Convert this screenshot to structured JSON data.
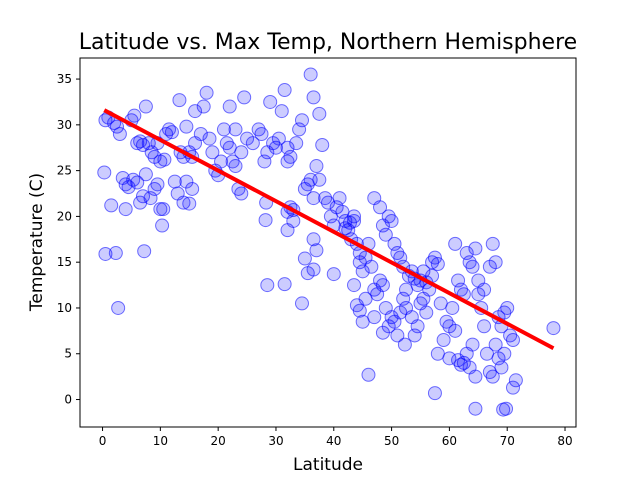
{
  "chart_data": {
    "type": "scatter",
    "title": "Latitude vs. Max Temp, Northern Hemisphere",
    "xlabel": "Latitude",
    "ylabel": "Temperature (C)",
    "xlim": [
      -3.9,
      81.9
    ],
    "ylim": [
      -3.0,
      37.3
    ],
    "xticks": [
      0,
      10,
      20,
      30,
      40,
      50,
      60,
      70,
      80
    ],
    "yticks": [
      0,
      5,
      10,
      15,
      20,
      25,
      30,
      35
    ],
    "grid": false,
    "series": [
      {
        "type": "scatter",
        "color": "#0000ff",
        "points": [
          [
            0.5,
            30.5
          ],
          [
            1,
            30.8
          ],
          [
            1.5,
            21.2
          ],
          [
            2,
            30.2
          ],
          [
            2.5,
            29.8
          ],
          [
            3,
            29
          ],
          [
            0.3,
            24.8
          ],
          [
            0.5,
            15.9
          ],
          [
            2.3,
            16
          ],
          [
            2.7,
            10
          ],
          [
            3.5,
            24.2
          ],
          [
            4,
            23.5
          ],
          [
            4.5,
            23.2
          ],
          [
            4,
            20.8
          ],
          [
            5,
            30.5
          ],
          [
            5.5,
            31
          ],
          [
            6,
            28
          ],
          [
            6.5,
            28.2
          ],
          [
            7,
            27.8
          ],
          [
            7.5,
            32
          ],
          [
            5.3,
            24
          ],
          [
            6,
            23.7
          ],
          [
            6.5,
            21.5
          ],
          [
            7,
            22.2
          ],
          [
            7.5,
            24.6
          ],
          [
            7.2,
            16.2
          ],
          [
            8,
            28
          ],
          [
            8.5,
            27
          ],
          [
            9,
            26.5
          ],
          [
            9.5,
            28
          ],
          [
            10,
            26
          ],
          [
            8.3,
            22
          ],
          [
            9,
            23
          ],
          [
            9.5,
            23.5
          ],
          [
            10,
            20.8
          ],
          [
            10.5,
            20.8
          ],
          [
            10.3,
            19
          ],
          [
            10.7,
            26.2
          ],
          [
            11,
            29
          ],
          [
            11.5,
            29.5
          ],
          [
            12,
            29.2
          ],
          [
            12.5,
            23.8
          ],
          [
            13,
            22.5
          ],
          [
            13.3,
            32.7
          ],
          [
            13.5,
            27
          ],
          [
            14,
            26.5
          ],
          [
            14.5,
            29.8
          ],
          [
            15,
            27
          ],
          [
            15.5,
            26.5
          ],
          [
            16,
            28
          ],
          [
            14.5,
            23.8
          ],
          [
            14,
            21.5
          ],
          [
            15,
            21.4
          ],
          [
            15.5,
            23
          ],
          [
            16,
            31.5
          ],
          [
            17,
            29
          ],
          [
            17.5,
            32
          ],
          [
            18,
            33.5
          ],
          [
            18.5,
            28.5
          ],
          [
            19,
            27
          ],
          [
            19.5,
            25
          ],
          [
            20,
            24.5
          ],
          [
            20.5,
            26
          ],
          [
            21,
            29.5
          ],
          [
            21.5,
            28
          ],
          [
            22,
            27.5
          ],
          [
            22.5,
            26
          ],
          [
            23,
            25.5
          ],
          [
            23.5,
            23
          ],
          [
            24,
            22.5
          ],
          [
            22,
            32
          ],
          [
            23,
            29.5
          ],
          [
            24,
            27
          ],
          [
            24.5,
            33
          ],
          [
            25,
            28.5
          ],
          [
            26,
            28
          ],
          [
            27,
            29.5
          ],
          [
            27.5,
            29
          ],
          [
            28,
            26
          ],
          [
            28.5,
            27
          ],
          [
            28.3,
            21.5
          ],
          [
            28.2,
            19.6
          ],
          [
            28.5,
            12.5
          ],
          [
            29,
            32.5
          ],
          [
            29.5,
            28
          ],
          [
            30,
            27.5
          ],
          [
            30.5,
            28.5
          ],
          [
            31,
            31.5
          ],
          [
            31.5,
            33.8
          ],
          [
            32,
            27.5
          ],
          [
            32,
            26
          ],
          [
            32.5,
            26.5
          ],
          [
            32,
            20.5
          ],
          [
            32.5,
            21
          ],
          [
            33,
            20.7
          ],
          [
            32,
            18.5
          ],
          [
            31.5,
            12.6
          ],
          [
            33,
            19.5
          ],
          [
            33.5,
            28
          ],
          [
            34,
            29.5
          ],
          [
            34.5,
            30.5
          ],
          [
            35,
            23
          ],
          [
            35.5,
            23.5
          ],
          [
            36,
            24
          ],
          [
            36.5,
            22
          ],
          [
            37,
            25.5
          ],
          [
            37.5,
            24
          ],
          [
            35,
            15.4
          ],
          [
            35.5,
            13.8
          ],
          [
            34.5,
            10.5
          ],
          [
            36.5,
            17.5
          ],
          [
            37,
            16.3
          ],
          [
            36.5,
            14.2
          ],
          [
            36,
            35.5
          ],
          [
            36.5,
            33
          ],
          [
            37.5,
            31.2
          ],
          [
            38,
            27.8
          ],
          [
            38.5,
            22
          ],
          [
            39,
            21.5
          ],
          [
            39.5,
            20
          ],
          [
            40,
            19
          ],
          [
            40.5,
            21
          ],
          [
            41,
            22
          ],
          [
            41.5,
            20.5
          ],
          [
            42,
            19.5
          ],
          [
            42.5,
            18.5
          ],
          [
            43,
            17.5
          ],
          [
            43.5,
            20
          ],
          [
            44,
            17
          ],
          [
            44.5,
            15
          ],
          [
            40,
            13.7
          ],
          [
            42,
            18.7
          ],
          [
            42.8,
            19.3
          ],
          [
            43.5,
            19.5
          ],
          [
            44.5,
            16
          ],
          [
            45,
            14
          ],
          [
            45.5,
            15.5
          ],
          [
            46,
            17
          ],
          [
            46.5,
            14.5
          ],
          [
            47,
            12
          ],
          [
            43.5,
            12.5
          ],
          [
            44,
            10.3
          ],
          [
            44.5,
            9.7
          ],
          [
            45,
            8.5
          ],
          [
            45.5,
            11
          ],
          [
            46,
            2.7
          ],
          [
            47,
            9
          ],
          [
            47.5,
            11.5
          ],
          [
            48,
            13
          ],
          [
            48.5,
            12.5
          ],
          [
            47,
            22
          ],
          [
            48,
            21
          ],
          [
            48.5,
            19
          ],
          [
            49,
            18
          ],
          [
            49.5,
            20
          ],
          [
            50,
            19.5
          ],
          [
            50.5,
            17
          ],
          [
            51,
            16
          ],
          [
            51.5,
            15.5
          ],
          [
            52,
            14.5
          ],
          [
            48.5,
            7.3
          ],
          [
            49,
            10
          ],
          [
            49.5,
            8
          ],
          [
            50,
            9
          ],
          [
            50.5,
            8.5
          ],
          [
            51,
            7
          ],
          [
            51.5,
            9.5
          ],
          [
            52,
            11
          ],
          [
            52.5,
            10
          ],
          [
            52.3,
            6
          ],
          [
            52.5,
            12
          ],
          [
            53,
            13.5
          ],
          [
            53.5,
            14
          ],
          [
            54,
            13.2
          ],
          [
            54.5,
            12.5
          ],
          [
            55,
            13
          ],
          [
            55.5,
            14
          ],
          [
            56,
            12.8
          ],
          [
            56.5,
            12
          ],
          [
            57,
            13.5
          ],
          [
            53.5,
            9
          ],
          [
            54,
            7
          ],
          [
            54.5,
            8
          ],
          [
            55,
            10.5
          ],
          [
            55.5,
            11
          ],
          [
            56,
            9.5
          ],
          [
            57,
            15
          ],
          [
            57.5,
            15.5
          ],
          [
            58,
            14.8
          ],
          [
            58.5,
            10.5
          ],
          [
            57.5,
            0.7
          ],
          [
            58,
            5
          ],
          [
            59,
            6.5
          ],
          [
            59.5,
            8.5
          ],
          [
            60,
            4.5
          ],
          [
            60.5,
            10
          ],
          [
            61,
            17
          ],
          [
            61.5,
            13
          ],
          [
            62,
            12
          ],
          [
            62.5,
            11.5
          ],
          [
            60,
            8
          ],
          [
            61,
            7.5
          ],
          [
            61.5,
            4.3
          ],
          [
            62,
            3.8
          ],
          [
            62.5,
            4
          ],
          [
            63,
            5
          ],
          [
            63.5,
            3.5
          ],
          [
            64,
            6
          ],
          [
            64.5,
            -1
          ],
          [
            64.5,
            2.5
          ],
          [
            63,
            16
          ],
          [
            63.5,
            15
          ],
          [
            64,
            14.5
          ],
          [
            64.5,
            16.5
          ],
          [
            65,
            11.5
          ],
          [
            65.5,
            10
          ],
          [
            66,
            8
          ],
          [
            66.5,
            5
          ],
          [
            67,
            3
          ],
          [
            67.5,
            2.5
          ],
          [
            65,
            13
          ],
          [
            66,
            12
          ],
          [
            67,
            14.5
          ],
          [
            67.5,
            17
          ],
          [
            68,
            15
          ],
          [
            68.5,
            9
          ],
          [
            69,
            8
          ],
          [
            69.5,
            5
          ],
          [
            69.8,
            -1
          ],
          [
            69.3,
            -1.1
          ],
          [
            68,
            6
          ],
          [
            68.5,
            4.5
          ],
          [
            69,
            3.5
          ],
          [
            69.5,
            9.5
          ],
          [
            70,
            10
          ],
          [
            70.5,
            7
          ],
          [
            71,
            6.5
          ],
          [
            71,
            1.3
          ],
          [
            71.5,
            2.1
          ],
          [
            78,
            7.8
          ]
        ]
      },
      {
        "type": "line",
        "color": "#ff0000",
        "points": [
          [
            0.3,
            31.6
          ],
          [
            78,
            5.6
          ]
        ]
      }
    ]
  }
}
